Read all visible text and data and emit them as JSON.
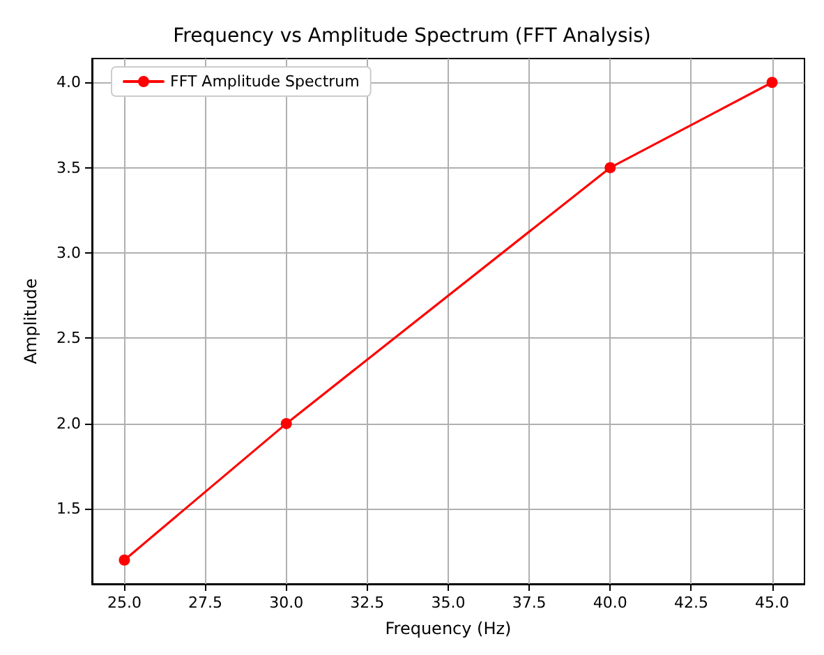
{
  "chart_data": {
    "type": "line",
    "title": "Frequency vs Amplitude Spectrum (FFT Analysis)",
    "xlabel": "Frequency (Hz)",
    "ylabel": "Amplitude",
    "x": [
      25,
      30,
      40,
      45
    ],
    "series": [
      {
        "name": "FFT Amplitude Spectrum",
        "color": "#ff0000",
        "values": [
          1.2,
          2.0,
          3.5,
          4.0
        ]
      }
    ],
    "xlim": [
      24,
      46
    ],
    "xticks": [
      {
        "value": 25,
        "label": "25.0"
      },
      {
        "value": 27.5,
        "label": "27.5"
      },
      {
        "value": 30,
        "label": "30.0"
      },
      {
        "value": 32.5,
        "label": "32.5"
      },
      {
        "value": 35,
        "label": "35.0"
      },
      {
        "value": 37.5,
        "label": "37.5"
      },
      {
        "value": 40,
        "label": "40.0"
      },
      {
        "value": 42.5,
        "label": "42.5"
      },
      {
        "value": 45,
        "label": "45.0"
      }
    ],
    "ylim": [
      1.06,
      4.14
    ],
    "yticks": [
      {
        "value": 1.5,
        "label": "1.5"
      },
      {
        "value": 2,
        "label": "2.0"
      },
      {
        "value": 2.5,
        "label": "2.5"
      },
      {
        "value": 3,
        "label": "3.0"
      },
      {
        "value": 3.5,
        "label": "3.5"
      },
      {
        "value": 4,
        "label": "4.0"
      }
    ],
    "grid": true,
    "legend": "top left",
    "marker": "circle",
    "line_style": "solid"
  }
}
